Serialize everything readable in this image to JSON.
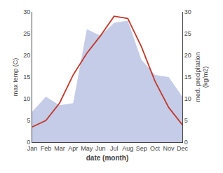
{
  "chart_data": {
    "type": "line",
    "categories": [
      "Jan",
      "Feb",
      "Mar",
      "Apr",
      "May",
      "Jun",
      "Jul",
      "Aug",
      "Sep",
      "Oct",
      "Nov",
      "Dec"
    ],
    "series": [
      {
        "type": "area",
        "color": "#c5cce8",
        "axis": "y2",
        "values": [
          7.0,
          10.5,
          8.5,
          9.0,
          26.0,
          24.5,
          27.5,
          28.0,
          19.0,
          15.5,
          15.0,
          10.5
        ]
      },
      {
        "type": "line",
        "color": "#c0392b",
        "values": [
          3.5,
          5.0,
          9.0,
          15.5,
          20.5,
          24.5,
          29.0,
          28.5,
          22.0,
          14.0,
          8.0,
          4.0
        ]
      }
    ],
    "xlabel": "date (month)",
    "ylabel": "max temp (C)",
    "y2label": "med. precipitation\n(kg/m2)",
    "ylim": [
      0,
      30
    ],
    "yticks": [
      0,
      5,
      10,
      15,
      20,
      25,
      30
    ],
    "y2lim": [
      0,
      30
    ],
    "y2ticks": [
      0,
      5,
      10,
      15,
      20,
      25,
      30
    ],
    "grid": false
  }
}
